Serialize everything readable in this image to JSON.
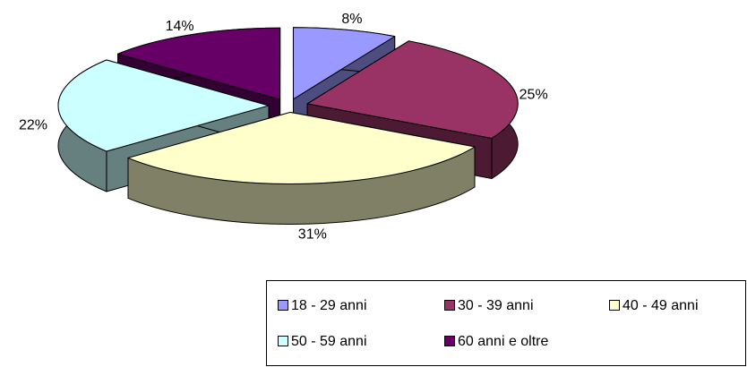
{
  "chart_data": {
    "type": "pie3d",
    "categories": [
      "18 - 29 anni",
      "30 - 39 anni",
      "40 - 49 anni",
      "50 - 59 anni",
      "60 anni e oltre"
    ],
    "values": [
      8,
      25,
      31,
      22,
      14
    ],
    "value_labels": [
      "8%",
      "25%",
      "31%",
      "22%",
      "14%"
    ],
    "colors": [
      "#9999ff",
      "#993366",
      "#ffffcc",
      "#ccffff",
      "#660066"
    ],
    "legend": "bottom"
  }
}
